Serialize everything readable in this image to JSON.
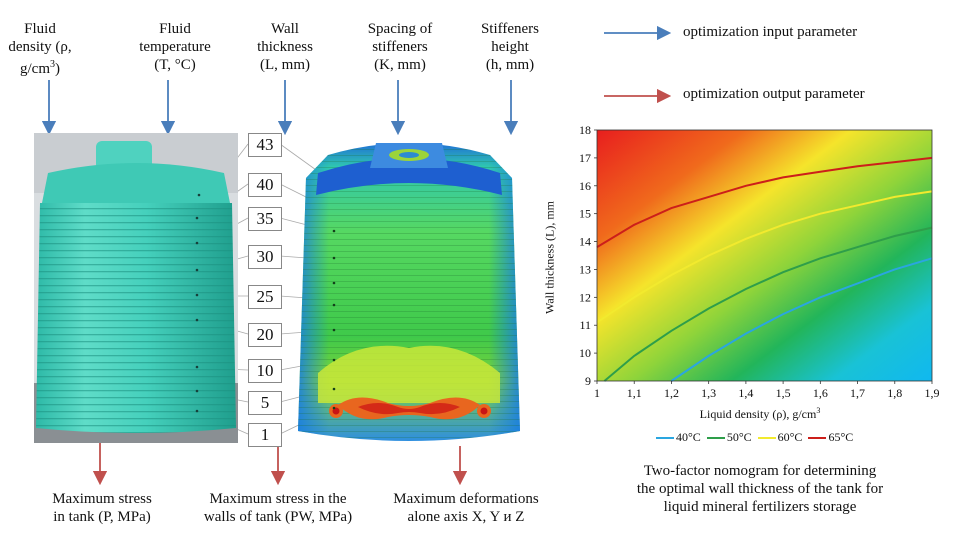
{
  "top_labels": {
    "density": {
      "line1": "Fluid",
      "line2": "density (ρ,",
      "line3a": "g/cm",
      "sup": "3",
      "line3b": ")"
    },
    "temperature": {
      "line1": "Fluid",
      "line2": "temperature",
      "line3": "(T, °C)"
    },
    "wall": {
      "line1": "Wall",
      "line2": "thickness",
      "line3": "(L, mm)"
    },
    "spacing": {
      "line1": "Spacing of",
      "line2": "stiffeners",
      "line3": "(K, mm)"
    },
    "height": {
      "line1": "Stiffeners",
      "line2": "height",
      "line3": "(h, mm)"
    }
  },
  "legend": {
    "input": "optimization input parameter",
    "output": "optimization output parameter",
    "input_color": "#4a7ebb",
    "output_color": "#c0504d"
  },
  "thickness_scale": [
    "43",
    "40",
    "35",
    "30",
    "25",
    "20",
    "10",
    "5",
    "1"
  ],
  "bottom_labels": {
    "stress": {
      "line1": "Maximum stress",
      "line2": "in tank (P, MPa)"
    },
    "wall_stress": {
      "line1": "Maximum stress in the",
      "line2": "walls of tank (PW, MPa)"
    },
    "deform": {
      "line1": "Maximum deformations",
      "line2": "alone axis X, Y и Z"
    }
  },
  "caption": {
    "line1": "Two-factor nomogram for determining",
    "line2": "the optimal wall thickness of the tank for",
    "line3": "liquid mineral fertilizers storage"
  },
  "chart_data": {
    "type": "line",
    "xlabel": "Liquid density (ρ), g/cm3",
    "xlabel_main": "Liquid density (ρ), g/cm",
    "xlabel_sup": "3",
    "ylabel": "Wall thickness (L), mm",
    "xlim": [
      1,
      1.9
    ],
    "ylim": [
      9,
      18
    ],
    "x_ticks": [
      "1",
      "1,1",
      "1,2",
      "1,3",
      "1,4",
      "1,5",
      "1,6",
      "1,7",
      "1,8",
      "1,9"
    ],
    "y_ticks": [
      "9",
      "10",
      "11",
      "12",
      "13",
      "14",
      "15",
      "16",
      "17",
      "18"
    ],
    "grid": false,
    "background": "heatmap gradient red (top-left) to blue (bottom-right)",
    "legend_position": "bottom",
    "series": [
      {
        "name": "40°C",
        "color": "#2aa6e0",
        "x": [
          1.2,
          1.3,
          1.4,
          1.5,
          1.6,
          1.7,
          1.8,
          1.9
        ],
        "y": [
          9.0,
          9.9,
          10.7,
          11.4,
          12.0,
          12.5,
          13.0,
          13.4
        ]
      },
      {
        "name": "50°C",
        "color": "#2e9e4a",
        "x": [
          1.02,
          1.1,
          1.2,
          1.3,
          1.4,
          1.5,
          1.6,
          1.7,
          1.8,
          1.9
        ],
        "y": [
          9.0,
          9.9,
          10.8,
          11.6,
          12.3,
          12.9,
          13.4,
          13.8,
          14.2,
          14.5
        ]
      },
      {
        "name": "60°C",
        "color": "#f2ea2e",
        "x": [
          1.0,
          1.1,
          1.2,
          1.3,
          1.4,
          1.5,
          1.6,
          1.7,
          1.8,
          1.9
        ],
        "y": [
          11.1,
          12.0,
          12.8,
          13.5,
          14.1,
          14.6,
          15.0,
          15.3,
          15.6,
          15.8
        ]
      },
      {
        "name": "65°C",
        "color": "#cc1f1a",
        "x": [
          1.0,
          1.1,
          1.2,
          1.3,
          1.4,
          1.5,
          1.6,
          1.7,
          1.8,
          1.9
        ],
        "y": [
          13.8,
          14.6,
          15.2,
          15.6,
          16.0,
          16.3,
          16.5,
          16.7,
          16.85,
          17.0
        ]
      }
    ]
  }
}
